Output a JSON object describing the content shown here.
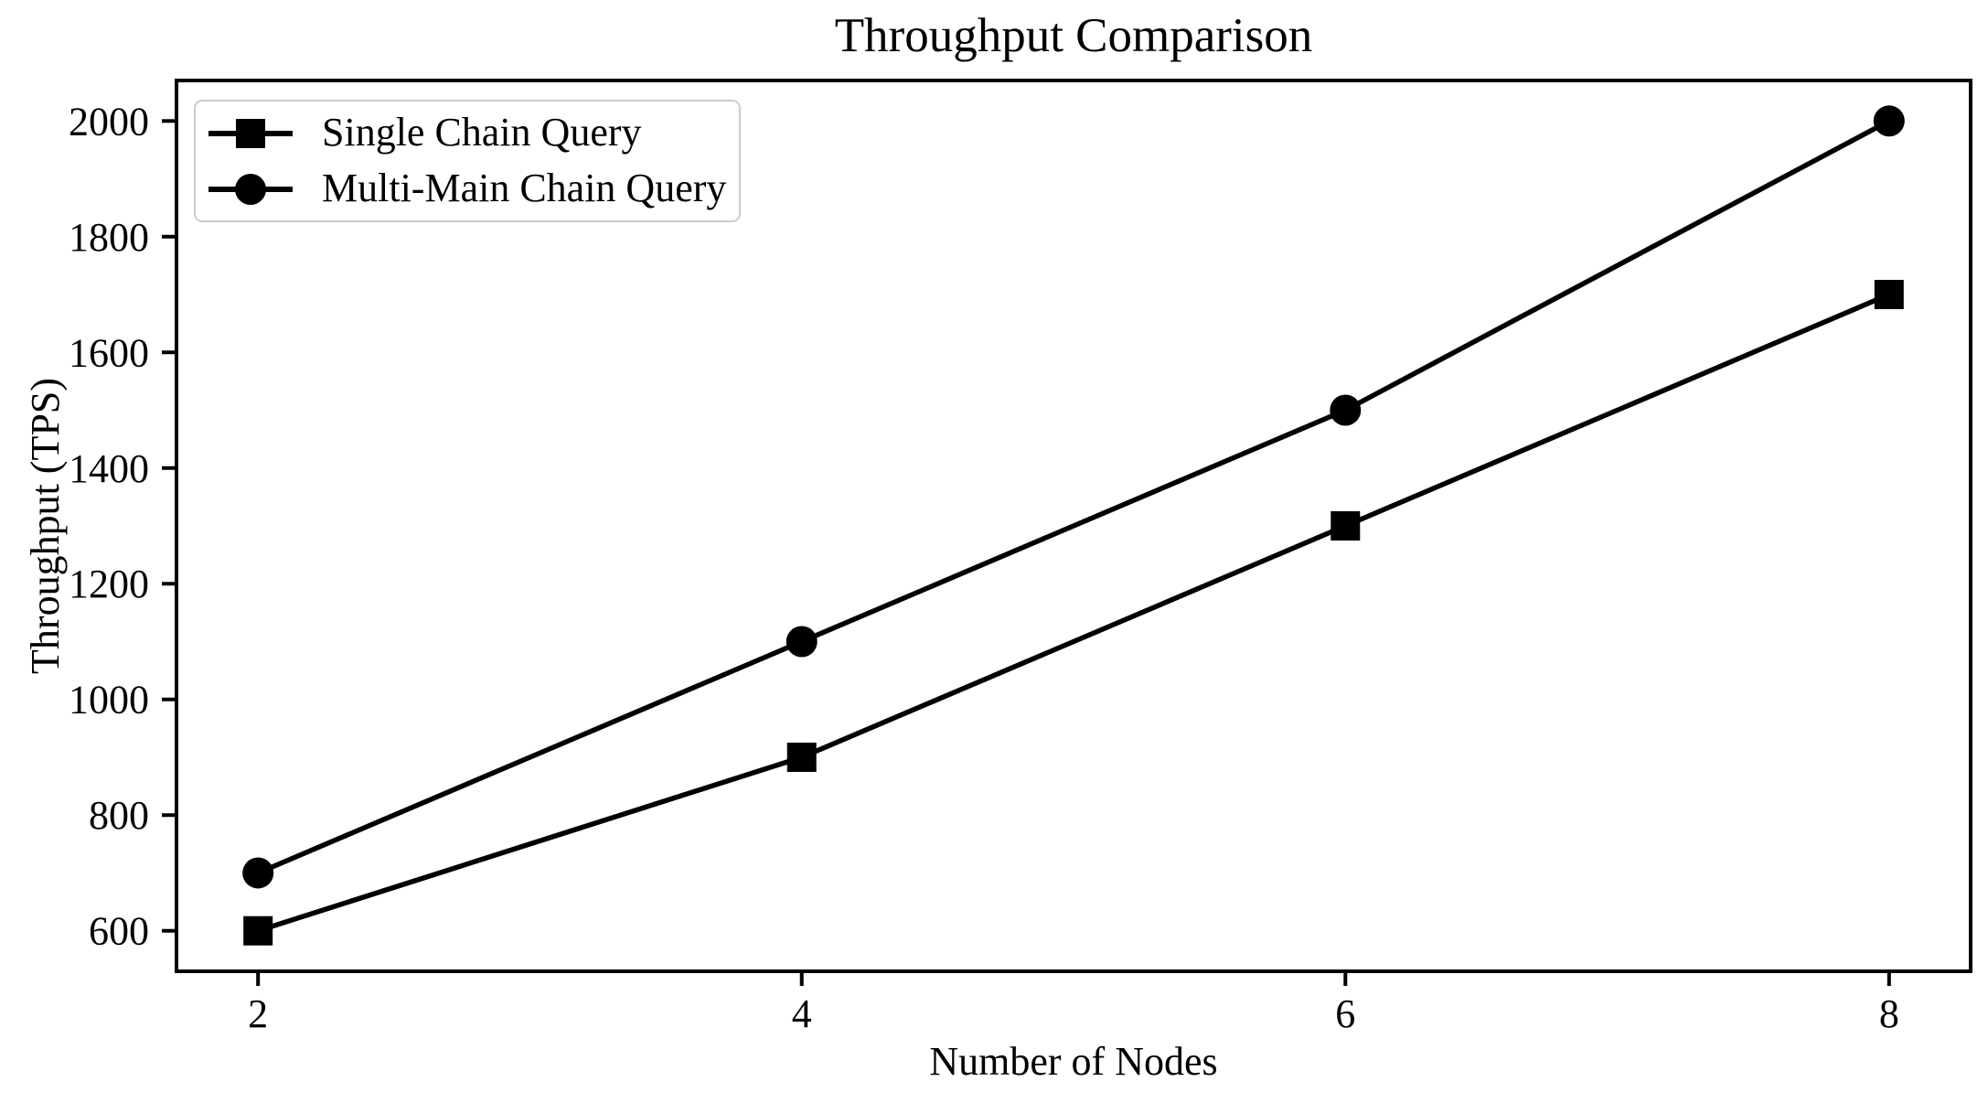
{
  "chart_data": {
    "type": "line",
    "title": "Throughput Comparison",
    "xlabel": "Number of Nodes",
    "ylabel": "Throughput (TPS)",
    "x": [
      2,
      4,
      6,
      8
    ],
    "series": [
      {
        "name": "Single Chain Query",
        "marker": "square",
        "color": "#000000",
        "values": [
          600,
          900,
          1300,
          1700
        ]
      },
      {
        "name": "Multi-Main Chain Query",
        "marker": "circle",
        "color": "#000000",
        "values": [
          700,
          1100,
          1500,
          2000
        ]
      }
    ],
    "xticks": [
      2,
      4,
      6,
      8
    ],
    "yticks": [
      600,
      800,
      1000,
      1200,
      1400,
      1600,
      1800,
      2000
    ],
    "xlim": [
      1.7,
      8.3
    ],
    "ylim": [
      530,
      2070
    ],
    "grid": false,
    "legend_position": "upper-left",
    "background": "#ffffff",
    "axis_color": "#000000",
    "legend_border_color": "#cccccc"
  }
}
